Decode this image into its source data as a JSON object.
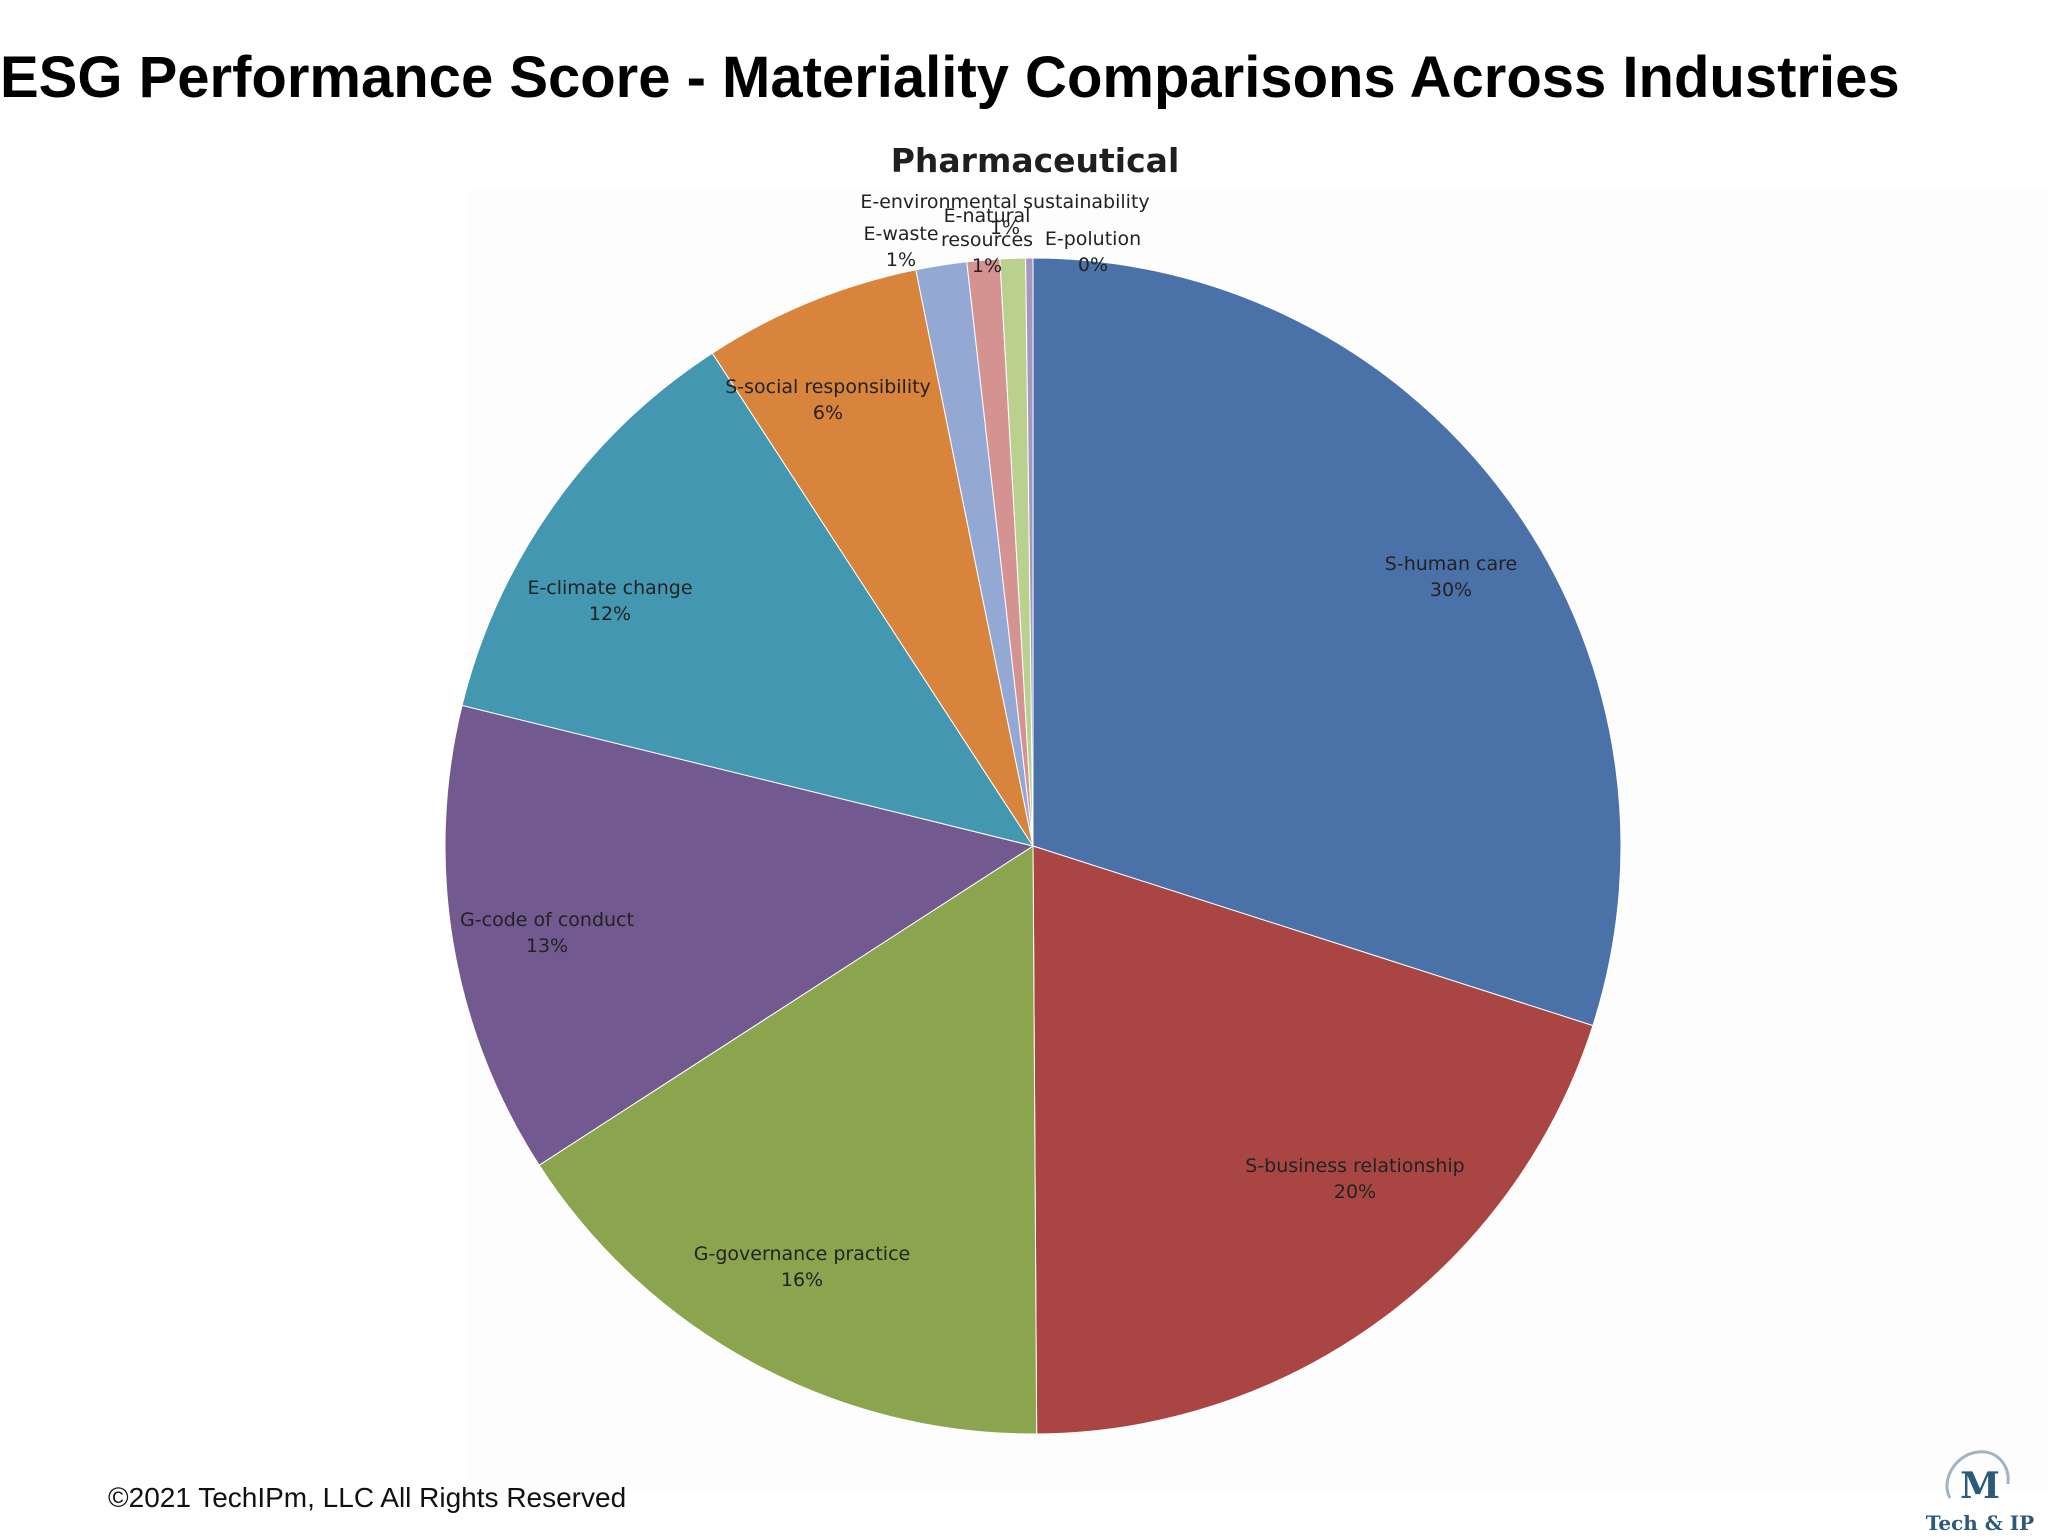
{
  "page": {
    "title": "ESG Performance Score - Materiality Comparisons Across Industries",
    "footer": "©2021 TechIPm, LLC All Rights Reserved"
  },
  "logo": {
    "letter": "M",
    "text": "Tech & IP",
    "color": "#2d5a7a"
  },
  "chart_data": {
    "type": "pie",
    "title": "Pharmaceutical",
    "slices": [
      {
        "label": "S-human care",
        "value_label": "30%",
        "value": 30.0,
        "color": "#4a72a8"
      },
      {
        "label": "S-business relationship",
        "value_label": "20%",
        "value": 20.0,
        "color": "#a94644"
      },
      {
        "label": "G-governance practice",
        "value_label": "16%",
        "value": 16.0,
        "color": "#8ba54e"
      },
      {
        "label": "G-code of conduct",
        "value_label": "13%",
        "value": 13.0,
        "color": "#72598f"
      },
      {
        "label": "E-climate change",
        "value_label": "12%",
        "value": 12.0,
        "color": "#4397b1"
      },
      {
        "label": "S-social responsibility",
        "value_label": "6%",
        "value": 6.0,
        "color": "#d9843c"
      },
      {
        "label": "E-waste",
        "value_label": "1%",
        "value": 1.4,
        "color": "#93a9d4"
      },
      {
        "label": "E-natural resources",
        "value_label": "1%",
        "value": 0.9,
        "color": "#d49391"
      },
      {
        "label": "E-environmental sustainability",
        "value_label": "1%",
        "value": 0.7,
        "color": "#b9d08f"
      },
      {
        "label": "E-polution",
        "value_label": "0%",
        "value": 0.2,
        "color": "#a796bf"
      }
    ]
  }
}
